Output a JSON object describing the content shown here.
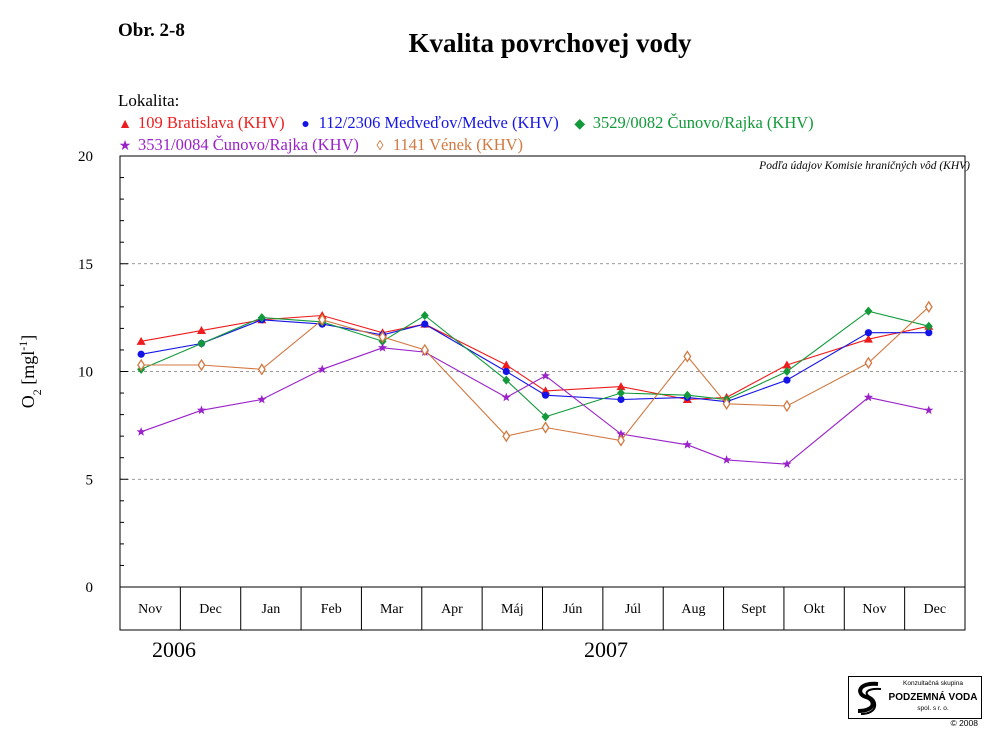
{
  "figure_label": "Obr. 2-8",
  "title": "Kvalita povrchovej vody",
  "legend_heading": "Lokalita:",
  "source_note": "Podľa údajov Komisie hraničných vôd (KHV)",
  "years": [
    "2006",
    "2007"
  ],
  "logo": {
    "small_text": "Konzultačná skupina",
    "name": "PODZEMNÁ VODA",
    "sub_text": "spol. s r. o.",
    "copyright": "© 2008"
  },
  "chart_data": {
    "type": "line",
    "ylabel": "O2 [mgl-1]",
    "ylabel_parts": {
      "base": "O",
      "sub": "2",
      "mid": " [mgl",
      "sup": "-1",
      "end": "]"
    },
    "ylim": [
      0,
      20
    ],
    "yticks": [
      "0",
      "5",
      "10",
      "15",
      "20"
    ],
    "grid": "dashed horizontal at 5, 10, 15",
    "categories": [
      "Nov",
      "Dec",
      "Jan",
      "Feb",
      "Mar",
      "Apr",
      "Máj",
      "Jún",
      "Júl",
      "Aug",
      "Sept",
      "Okt",
      "Nov",
      "Dec"
    ],
    "series": [
      {
        "name": "109 Bratislava (KHV)",
        "color": "#ee1c1c",
        "marker": "triangle",
        "marker_symbol": "▲",
        "points": [
          [
            0.35,
            11.4
          ],
          [
            1.35,
            11.9
          ],
          [
            2.35,
            12.4
          ],
          [
            3.35,
            12.6
          ],
          [
            4.35,
            11.8
          ],
          [
            5.05,
            12.2
          ],
          [
            6.4,
            10.3
          ],
          [
            7.05,
            9.1
          ],
          [
            8.3,
            9.3
          ],
          [
            9.4,
            8.7
          ],
          [
            10.05,
            8.8
          ],
          [
            11.05,
            10.3
          ],
          [
            12.4,
            11.5
          ],
          [
            13.4,
            12.1
          ]
        ]
      },
      {
        "name": "112/2306 Medveďov/Medve (KHV)",
        "color": "#1414e6",
        "marker": "circle",
        "marker_symbol": "●",
        "points": [
          [
            0.35,
            10.8
          ],
          [
            1.35,
            11.3
          ],
          [
            2.35,
            12.4
          ],
          [
            3.35,
            12.2
          ],
          [
            4.35,
            11.7
          ],
          [
            5.05,
            12.2
          ],
          [
            6.4,
            10.0
          ],
          [
            7.05,
            8.9
          ],
          [
            8.3,
            8.7
          ],
          [
            9.4,
            8.8
          ],
          [
            10.05,
            8.6
          ],
          [
            11.05,
            9.6
          ],
          [
            12.4,
            11.8
          ],
          [
            13.4,
            11.8
          ]
        ]
      },
      {
        "name": "3529/0082 Čunovo/Rajka (KHV)",
        "color": "#129a3a",
        "marker": "diamond",
        "marker_symbol": "◆",
        "points": [
          [
            0.35,
            10.1
          ],
          [
            1.35,
            11.3
          ],
          [
            2.35,
            12.5
          ],
          [
            3.35,
            12.3
          ],
          [
            4.35,
            11.4
          ],
          [
            5.05,
            12.6
          ],
          [
            6.4,
            9.6
          ],
          [
            7.05,
            7.9
          ],
          [
            8.3,
            9.0
          ],
          [
            9.4,
            8.9
          ],
          [
            10.05,
            8.7
          ],
          [
            11.05,
            10.0
          ],
          [
            12.4,
            12.8
          ],
          [
            13.4,
            12.1
          ]
        ]
      },
      {
        "name": "3531/0084 Čunovo/Rajka (KHV)",
        "color": "#9a22c8",
        "marker": "star",
        "marker_symbol": "★",
        "points": [
          [
            0.35,
            7.2
          ],
          [
            1.35,
            8.2
          ],
          [
            2.35,
            8.7
          ],
          [
            3.35,
            10.1
          ],
          [
            4.35,
            11.1
          ],
          [
            5.05,
            10.9
          ],
          [
            6.4,
            8.8
          ],
          [
            7.05,
            9.8
          ],
          [
            8.3,
            7.1
          ],
          [
            9.4,
            6.6
          ],
          [
            10.05,
            5.9
          ],
          [
            11.05,
            5.7
          ],
          [
            12.4,
            8.8
          ],
          [
            13.4,
            8.2
          ]
        ]
      },
      {
        "name": "1141 Vének (KHV)",
        "color": "#d27840",
        "marker": "hollow-diamond",
        "marker_symbol": "◊",
        "points": [
          [
            0.35,
            10.3
          ],
          [
            1.35,
            10.3
          ],
          [
            2.35,
            10.1
          ],
          [
            3.35,
            12.4
          ],
          [
            4.35,
            11.6
          ],
          [
            5.05,
            11.0
          ],
          [
            6.4,
            7.0
          ],
          [
            7.05,
            7.4
          ],
          [
            8.3,
            6.8
          ],
          [
            9.4,
            10.7
          ],
          [
            10.05,
            8.5
          ],
          [
            11.05,
            8.4
          ],
          [
            12.4,
            10.4
          ],
          [
            13.4,
            13.0
          ]
        ]
      }
    ]
  }
}
